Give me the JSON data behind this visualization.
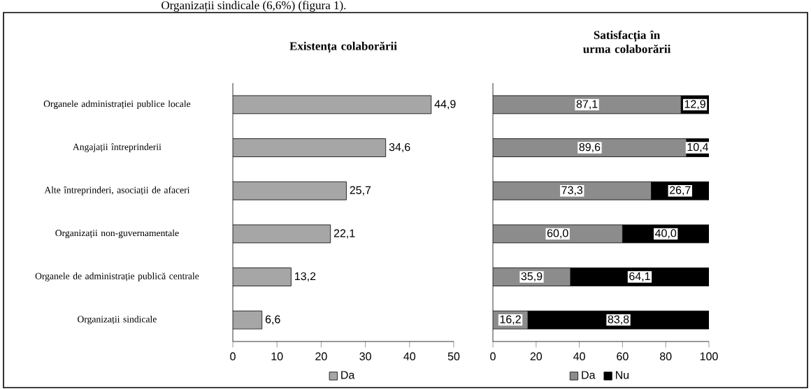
{
  "chart_data": [
    {
      "type": "bar",
      "orientation": "horizontal",
      "title": "Existența colaborării",
      "categories": [
        "Organele administrației publice locale",
        "Angajații întreprinderii",
        "Alte întreprinderi, asociații de afaceri",
        "Organizații non-guvernamentale",
        "Organele de administrație publică centrale",
        "Organizații sindicale"
      ],
      "series": [
        {
          "name": "Da",
          "color": "#a6a6a6",
          "values": [
            44.9,
            34.6,
            25.7,
            22.1,
            13.2,
            6.6
          ],
          "value_labels": [
            "44,9",
            "34,6",
            "25,7",
            "22,1",
            "13,2",
            "6,6"
          ]
        }
      ],
      "xlim": [
        0,
        50
      ],
      "xticks": [
        0,
        10,
        20,
        30,
        40,
        50
      ],
      "legend": "bottom",
      "annotations": [
        "Organizații sindicale (6,6%) (figura 1)."
      ]
    },
    {
      "type": "bar",
      "orientation": "horizontal",
      "stacked": true,
      "title": "Satisfacția în urma colaborării",
      "categories": [
        null,
        null,
        null,
        null,
        null,
        null
      ],
      "series": [
        {
          "name": "Da",
          "color": "#8c8c8c",
          "values": [
            87.1,
            89.6,
            73.3,
            60.0,
            35.9,
            16.2
          ],
          "value_labels": [
            "87,1",
            "89,6",
            "73,3",
            "60,0",
            "35,9",
            "16,2"
          ]
        },
        {
          "name": "Nu",
          "color": "#000000",
          "values": [
            12.9,
            10.4,
            26.7,
            40.0,
            64.1,
            83.8
          ],
          "value_labels": [
            "12,9",
            "10,4",
            "26,7",
            "40,0",
            "64,1",
            "83,8"
          ]
        }
      ],
      "xlim": [
        0,
        100
      ],
      "xticks": [
        0,
        20,
        40,
        60,
        80,
        100
      ],
      "legend": "bottom"
    }
  ]
}
